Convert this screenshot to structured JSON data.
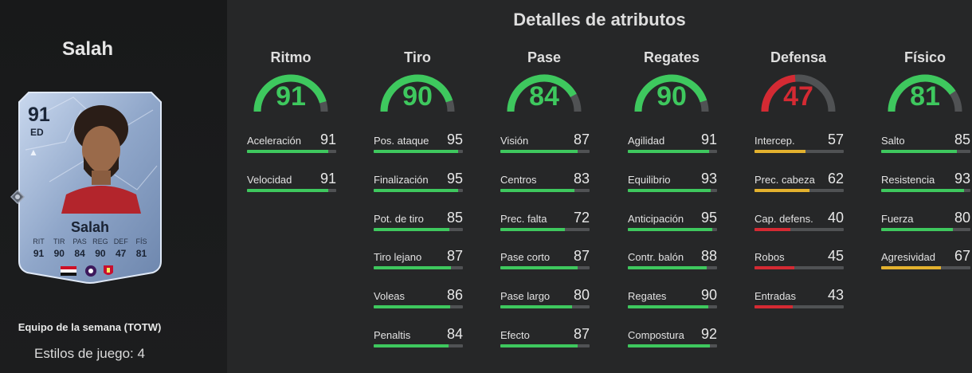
{
  "player": {
    "name": "Salah",
    "card": {
      "rating": "91",
      "position": "ED",
      "name": "Salah",
      "stat_labels": [
        "RIT",
        "TIR",
        "PAS",
        "REG",
        "DEF",
        "FÍS"
      ],
      "stat_values": [
        "91",
        "90",
        "84",
        "90",
        "47",
        "81"
      ]
    },
    "team_label": "Equipo de la semana (TOTW)",
    "playstyles_label": "Estilos de juego: 4"
  },
  "details_title": "Detalles de atributos",
  "colors": {
    "high": "#3ec85e",
    "mid": "#e3b12e",
    "low": "#d42a33",
    "track": "#505254"
  },
  "categories": [
    {
      "name": "Ritmo",
      "value": 91,
      "attributes": [
        {
          "name": "Aceleración",
          "value": 91
        },
        {
          "name": "Velocidad",
          "value": 91
        }
      ]
    },
    {
      "name": "Tiro",
      "value": 90,
      "attributes": [
        {
          "name": "Pos. ataque",
          "value": 95
        },
        {
          "name": "Finalización",
          "value": 95
        },
        {
          "name": "Pot. de tiro",
          "value": 85
        },
        {
          "name": "Tiro lejano",
          "value": 87
        },
        {
          "name": "Voleas",
          "value": 86
        },
        {
          "name": "Penaltis",
          "value": 84
        }
      ]
    },
    {
      "name": "Pase",
      "value": 84,
      "attributes": [
        {
          "name": "Visión",
          "value": 87
        },
        {
          "name": "Centros",
          "value": 83
        },
        {
          "name": "Prec. falta",
          "value": 72
        },
        {
          "name": "Pase corto",
          "value": 87
        },
        {
          "name": "Pase largo",
          "value": 80
        },
        {
          "name": "Efecto",
          "value": 87
        }
      ]
    },
    {
      "name": "Regates",
      "value": 90,
      "attributes": [
        {
          "name": "Agilidad",
          "value": 91
        },
        {
          "name": "Equilibrio",
          "value": 93
        },
        {
          "name": "Anticipación",
          "value": 95
        },
        {
          "name": "Contr. balón",
          "value": 88
        },
        {
          "name": "Regates",
          "value": 90
        },
        {
          "name": "Compostura",
          "value": 92
        }
      ]
    },
    {
      "name": "Defensa",
      "value": 47,
      "attributes": [
        {
          "name": "Intercep.",
          "value": 57
        },
        {
          "name": "Prec. cabeza",
          "value": 62
        },
        {
          "name": "Cap. defens.",
          "value": 40
        },
        {
          "name": "Robos",
          "value": 45
        },
        {
          "name": "Entradas",
          "value": 43
        }
      ]
    },
    {
      "name": "Físico",
      "value": 81,
      "attributes": [
        {
          "name": "Salto",
          "value": 85
        },
        {
          "name": "Resistencia",
          "value": 93
        },
        {
          "name": "Fuerza",
          "value": 80
        },
        {
          "name": "Agresividad",
          "value": 67
        }
      ]
    }
  ]
}
